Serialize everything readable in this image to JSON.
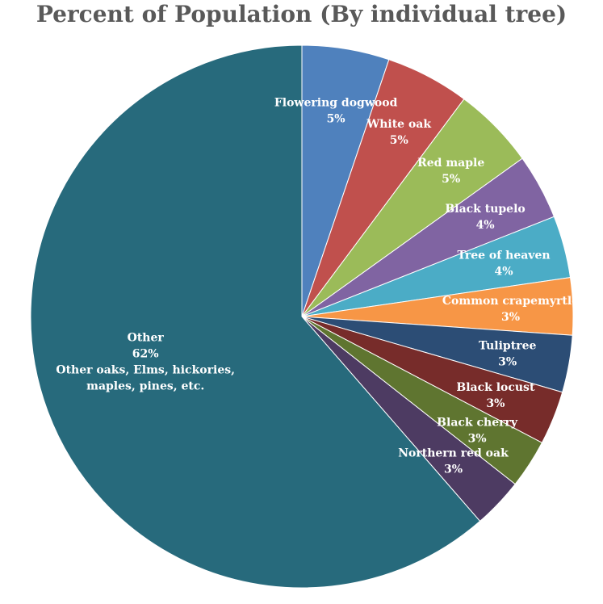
{
  "chart_data": {
    "type": "pie",
    "title": "Percent of Population (By individual tree)",
    "slices": [
      {
        "label": "Flowering dogwood",
        "percent_label": "5%",
        "value": 5.2,
        "color": "#4f81bd"
      },
      {
        "label": "White oak",
        "percent_label": "5%",
        "value": 5.0,
        "color": "#c0504d"
      },
      {
        "label": "Red maple",
        "percent_label": "5%",
        "value": 4.9,
        "color": "#9bbb59"
      },
      {
        "label": "Black tupelo",
        "percent_label": "4%",
        "value": 3.9,
        "color": "#8064a2"
      },
      {
        "label": "Tree of heaven",
        "percent_label": "4%",
        "value": 3.7,
        "color": "#4bacc6"
      },
      {
        "label": "Common crapemyrtle",
        "percent_label": "3%",
        "value": 3.4,
        "color": "#f79646"
      },
      {
        "label": "Tuliptree",
        "percent_label": "3%",
        "value": 3.4,
        "color": "#2c4d75"
      },
      {
        "label": "Black locust",
        "percent_label": "3%",
        "value": 3.2,
        "color": "#772c2a"
      },
      {
        "label": "Black cherry",
        "percent_label": "3%",
        "value": 2.9,
        "color": "#5f7530"
      },
      {
        "label": "Northern red oak",
        "percent_label": "3%",
        "value": 3.0,
        "color": "#4d3b62"
      },
      {
        "label": "Other",
        "percent_label": "62%",
        "value": 61.4,
        "color": "#276a7c",
        "note": "Other oaks, Elms, hickories, maples, pines, etc."
      }
    ]
  }
}
